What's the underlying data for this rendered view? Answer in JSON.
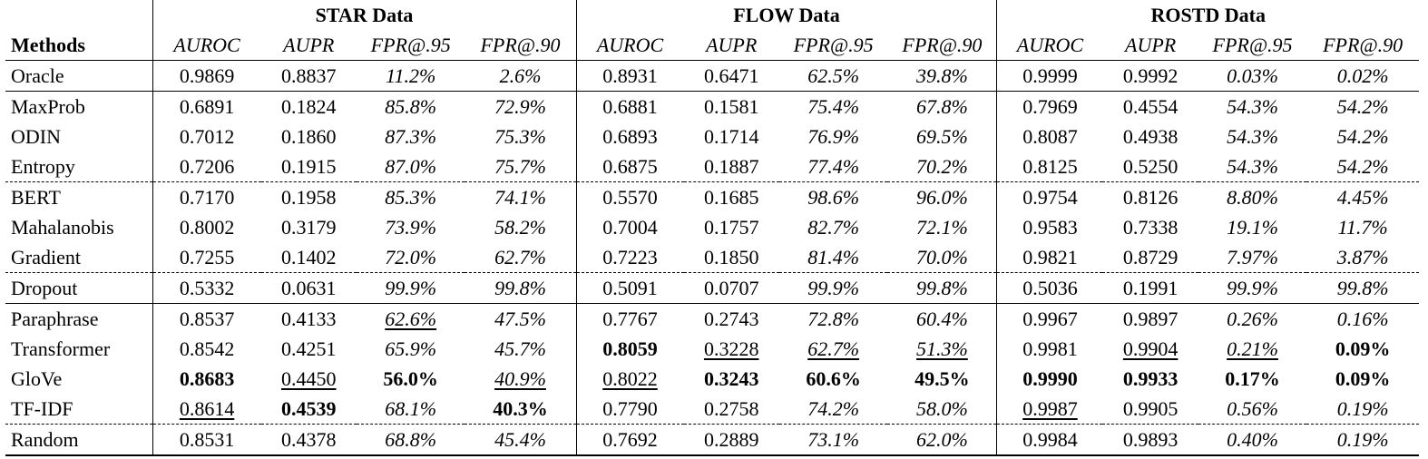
{
  "header": {
    "methods_label": "Methods",
    "groups": [
      "STAR Data",
      "FLOW Data",
      "ROSTD Data"
    ],
    "metrics": [
      "AUROC",
      "AUPR",
      "FPR@.95",
      "FPR@.90"
    ]
  },
  "rows": [
    {
      "method": "Oracle",
      "cells": [
        "0.9869",
        "0.8837",
        "11.2%",
        "2.6%",
        "0.8931",
        "0.6471",
        "62.5%",
        "39.8%",
        "0.9999",
        "0.9992",
        "0.03%",
        "0.02%"
      ]
    },
    {
      "method": "MaxProb",
      "cells": [
        "0.6891",
        "0.1824",
        "85.8%",
        "72.9%",
        "0.6881",
        "0.1581",
        "75.4%",
        "67.8%",
        "0.7969",
        "0.4554",
        "54.3%",
        "54.2%"
      ]
    },
    {
      "method": "ODIN",
      "cells": [
        "0.7012",
        "0.1860",
        "87.3%",
        "75.3%",
        "0.6893",
        "0.1714",
        "76.9%",
        "69.5%",
        "0.8087",
        "0.4938",
        "54.3%",
        "54.2%"
      ]
    },
    {
      "method": "Entropy",
      "cells": [
        "0.7206",
        "0.1915",
        "87.0%",
        "75.7%",
        "0.6875",
        "0.1887",
        "77.4%",
        "70.2%",
        "0.8125",
        "0.5250",
        "54.3%",
        "54.2%"
      ]
    },
    {
      "method": "BERT",
      "cells": [
        "0.7170",
        "0.1958",
        "85.3%",
        "74.1%",
        "0.5570",
        "0.1685",
        "98.6%",
        "96.0%",
        "0.9754",
        "0.8126",
        "8.80%",
        "4.45%"
      ]
    },
    {
      "method": "Mahalanobis",
      "cells": [
        "0.8002",
        "0.3179",
        "73.9%",
        "58.2%",
        "0.7004",
        "0.1757",
        "82.7%",
        "72.1%",
        "0.9583",
        "0.7338",
        "19.1%",
        "11.7%"
      ]
    },
    {
      "method": "Gradient",
      "cells": [
        "0.7255",
        "0.1402",
        "72.0%",
        "62.7%",
        "0.7223",
        "0.1850",
        "81.4%",
        "70.0%",
        "0.9821",
        "0.8729",
        "7.97%",
        "3.87%"
      ]
    },
    {
      "method": "Dropout",
      "cells": [
        "0.5332",
        "0.0631",
        "99.9%",
        "99.8%",
        "0.5091",
        "0.0707",
        "99.9%",
        "99.8%",
        "0.5036",
        "0.1991",
        "99.9%",
        "99.8%"
      ]
    },
    {
      "method": "Paraphrase",
      "cells": [
        "0.8537",
        "0.4133",
        "62.6%",
        "47.5%",
        "0.7767",
        "0.2743",
        "72.8%",
        "60.4%",
        "0.9967",
        "0.9897",
        "0.26%",
        "0.16%"
      ]
    },
    {
      "method": "Transformer",
      "cells": [
        "0.8542",
        "0.4251",
        "65.9%",
        "45.7%",
        "0.8059",
        "0.3228",
        "62.7%",
        "51.3%",
        "0.9981",
        "0.9904",
        "0.21%",
        "0.09%"
      ]
    },
    {
      "method": "GloVe",
      "cells": [
        "0.8683",
        "0.4450",
        "56.0%",
        "40.9%",
        "0.8022",
        "0.3243",
        "60.6%",
        "49.5%",
        "0.9990",
        "0.9933",
        "0.17%",
        "0.09%"
      ]
    },
    {
      "method": "TF-IDF",
      "cells": [
        "0.8614",
        "0.4539",
        "68.1%",
        "40.3%",
        "0.7790",
        "0.2758",
        "74.2%",
        "58.0%",
        "0.9987",
        "0.9905",
        "0.56%",
        "0.19%"
      ]
    },
    {
      "method": "Random",
      "cells": [
        "0.8531",
        "0.4378",
        "68.8%",
        "45.4%",
        "0.7692",
        "0.2889",
        "73.1%",
        "62.0%",
        "0.9984",
        "0.9893",
        "0.40%",
        "0.19%"
      ]
    }
  ]
}
